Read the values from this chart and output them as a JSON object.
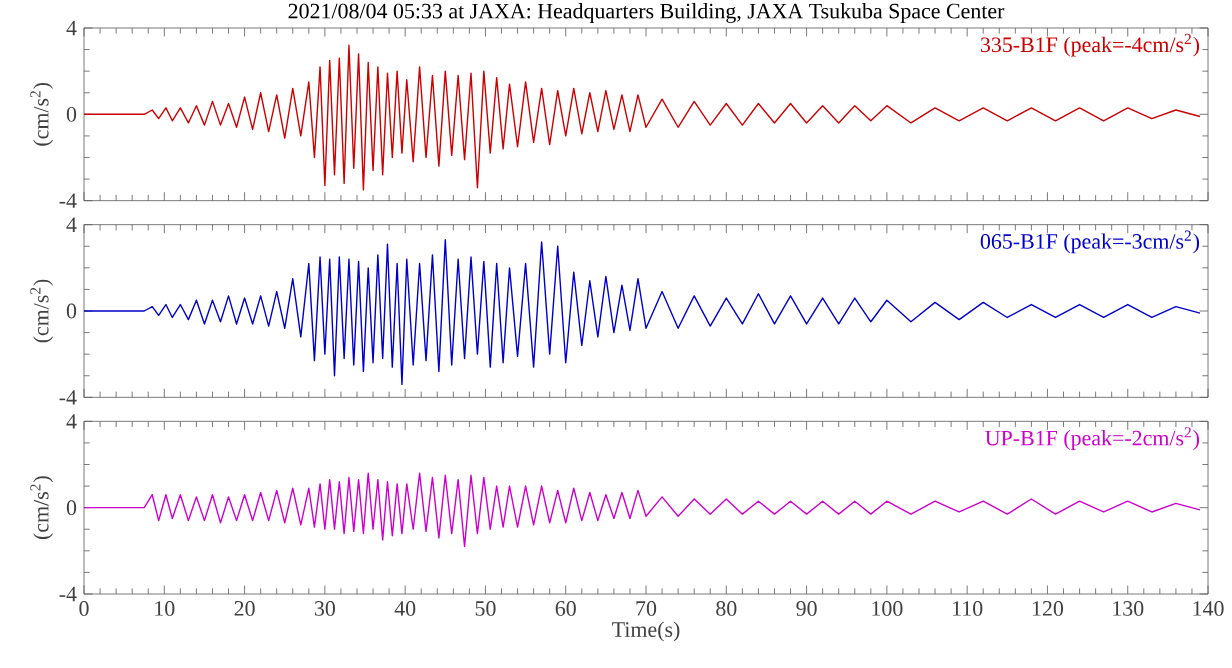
{
  "chart_data": [
    {
      "type": "line",
      "title": "2021/08/04 05:33 at JAXA: Headquarters Building, JAXA Tsukuba Space Center",
      "ylabel": "(cm/s$^{2}$)",
      "annotations": [
        "335-B1F (peak=-4cm/s$^{2}$)"
      ],
      "xlim": [
        0,
        140
      ],
      "xticks": [
        0,
        10,
        20,
        30,
        40,
        50,
        60,
        70,
        80,
        90,
        100,
        110,
        120,
        130,
        140
      ],
      "ylim": [
        -4,
        4
      ],
      "yticks": [
        -4,
        0,
        4
      ],
      "tick_labels": "y",
      "grid": false,
      "marker": "none",
      "line_style": "solid",
      "series": [
        {
          "color": "#cc0000",
          "x": [
            0,
            7.5,
            8.5,
            9.3,
            10.2,
            11,
            12,
            13,
            14,
            15,
            16,
            17,
            18,
            19,
            20,
            21,
            22,
            23,
            24,
            25,
            26,
            27,
            28,
            28.7,
            29.4,
            30,
            30.6,
            31.2,
            31.8,
            32.4,
            33,
            33.6,
            34.2,
            34.8,
            35.4,
            36,
            36.6,
            37.2,
            37.8,
            38.4,
            39,
            39.6,
            40.2,
            41,
            41.8,
            42.6,
            43.4,
            44.2,
            45,
            45.8,
            46.6,
            47.4,
            48.2,
            49,
            49.8,
            50.6,
            51.4,
            52.2,
            53,
            54,
            55,
            56,
            57,
            58,
            59,
            60,
            61,
            62,
            63,
            64,
            65,
            66,
            67,
            68,
            69,
            70,
            72,
            74,
            76,
            78,
            80,
            82,
            84,
            86,
            88,
            90,
            92,
            94,
            96,
            98,
            100,
            103,
            106,
            109,
            112,
            115,
            118,
            121,
            124,
            127,
            130,
            133,
            136,
            139
          ],
          "values": [
            0,
            0,
            0.2,
            -0.2,
            0.3,
            -0.3,
            0.3,
            -0.4,
            0.4,
            -0.5,
            0.6,
            -0.5,
            0.5,
            -0.6,
            0.8,
            -0.7,
            1.0,
            -0.8,
            0.9,
            -1.1,
            1.2,
            -1.0,
            1.5,
            -2.0,
            2.2,
            -3.3,
            2.5,
            -2.8,
            2.6,
            -3.2,
            3.2,
            -2.5,
            2.8,
            -3.5,
            2.4,
            -2.6,
            2.2,
            -2.8,
            1.9,
            -2.0,
            2.0,
            -1.8,
            1.6,
            -2.2,
            2.2,
            -2.0,
            1.8,
            -2.4,
            2.0,
            -1.9,
            1.8,
            -2.1,
            1.9,
            -3.4,
            2.0,
            -1.8,
            1.7,
            -1.6,
            1.4,
            -1.5,
            1.5,
            -1.3,
            1.2,
            -1.4,
            1.1,
            -1.0,
            1.2,
            -0.9,
            1.0,
            -0.8,
            1.1,
            -0.7,
            0.9,
            -0.8,
            0.9,
            -0.6,
            0.7,
            -0.6,
            0.6,
            -0.5,
            0.5,
            -0.5,
            0.5,
            -0.4,
            0.5,
            -0.4,
            0.4,
            -0.4,
            0.4,
            -0.3,
            0.4,
            -0.4,
            0.3,
            -0.3,
            0.3,
            -0.3,
            0.3,
            -0.3,
            0.3,
            -0.3,
            0.3,
            -0.2,
            0.2,
            -0.1
          ]
        }
      ]
    },
    {
      "type": "line",
      "ylabel": "(cm/s$^{2}$)",
      "annotations": [
        "065-B1F (peak=-3cm/s$^{2}$)"
      ],
      "xlim": [
        0,
        140
      ],
      "xticks": [
        0,
        10,
        20,
        30,
        40,
        50,
        60,
        70,
        80,
        90,
        100,
        110,
        120,
        130,
        140
      ],
      "ylim": [
        -4,
        4
      ],
      "yticks": [
        -4,
        0,
        4
      ],
      "tick_labels": "y",
      "grid": false,
      "marker": "none",
      "line_style": "solid",
      "series": [
        {
          "color": "#0000cc",
          "x": [
            0,
            7.5,
            8.5,
            9.3,
            10.2,
            11,
            12,
            13,
            14,
            15,
            16,
            17,
            18,
            19,
            20,
            21,
            22,
            23,
            24,
            25,
            26,
            27,
            28,
            28.7,
            29.4,
            30,
            30.6,
            31.2,
            31.8,
            32.4,
            33,
            33.6,
            34.2,
            34.8,
            35.4,
            36,
            36.6,
            37.2,
            37.8,
            38.4,
            39,
            39.6,
            40.2,
            41,
            41.8,
            42.6,
            43.4,
            44.2,
            45,
            45.8,
            46.6,
            47.4,
            48.2,
            49,
            49.8,
            50.6,
            51.4,
            52.2,
            53,
            54,
            55,
            56,
            57,
            58,
            59,
            60,
            61,
            62,
            63,
            64,
            65,
            66,
            67,
            68,
            69,
            70,
            72,
            74,
            76,
            78,
            80,
            82,
            84,
            86,
            88,
            90,
            92,
            94,
            96,
            98,
            100,
            103,
            106,
            109,
            112,
            115,
            118,
            121,
            124,
            127,
            130,
            133,
            136,
            139
          ],
          "values": [
            0,
            0,
            0.2,
            -0.2,
            0.3,
            -0.3,
            0.3,
            -0.4,
            0.5,
            -0.6,
            0.5,
            -0.5,
            0.7,
            -0.6,
            0.6,
            -0.6,
            0.7,
            -0.7,
            0.9,
            -0.8,
            1.5,
            -1.2,
            2.2,
            -2.3,
            2.5,
            -2.0,
            2.4,
            -3.0,
            2.5,
            -2.2,
            2.4,
            -2.5,
            2.3,
            -2.8,
            2.0,
            -2.4,
            2.6,
            -2.2,
            3.1,
            -2.6,
            2.2,
            -3.4,
            2.4,
            -2.5,
            2.2,
            -2.3,
            2.6,
            -2.8,
            3.3,
            -2.5,
            2.4,
            -2.2,
            2.5,
            -2.0,
            2.3,
            -2.6,
            2.2,
            -2.4,
            2.0,
            -2.1,
            2.2,
            -2.6,
            3.2,
            -2.0,
            3.0,
            -2.4,
            1.8,
            -1.6,
            1.4,
            -1.2,
            1.6,
            -1.0,
            1.2,
            -0.9,
            1.5,
            -0.8,
            0.9,
            -0.8,
            0.7,
            -0.7,
            0.6,
            -0.6,
            0.8,
            -0.6,
            0.7,
            -0.6,
            0.6,
            -0.6,
            0.6,
            -0.5,
            0.5,
            -0.5,
            0.4,
            -0.4,
            0.4,
            -0.3,
            0.3,
            -0.3,
            0.3,
            -0.3,
            0.3,
            -0.3,
            0.2,
            -0.1
          ]
        }
      ]
    },
    {
      "type": "line",
      "ylabel": "(cm/s$^{2}$)",
      "xlabel": "Time(s)",
      "annotations": [
        "UP-B1F (peak=-2cm/s$^{2}$)"
      ],
      "xlim": [
        0,
        140
      ],
      "xticks": [
        0,
        10,
        20,
        30,
        40,
        50,
        60,
        70,
        80,
        90,
        100,
        110,
        120,
        130,
        140
      ],
      "ylim": [
        -4,
        4
      ],
      "yticks": [
        -4,
        0,
        4
      ],
      "grid": false,
      "marker": "none",
      "line_style": "solid",
      "series": [
        {
          "color": "#cc00cc",
          "x": [
            0,
            7.5,
            8.5,
            9.3,
            10.2,
            11,
            12,
            13,
            14,
            15,
            16,
            17,
            18,
            19,
            20,
            21,
            22,
            23,
            24,
            25,
            26,
            27,
            28,
            28.7,
            29.4,
            30,
            30.6,
            31.2,
            31.8,
            32.4,
            33,
            33.6,
            34.2,
            34.8,
            35.4,
            36,
            36.6,
            37.2,
            37.8,
            38.4,
            39,
            39.6,
            40.2,
            41,
            41.8,
            42.6,
            43.4,
            44.2,
            45,
            45.8,
            46.6,
            47.4,
            48.2,
            49,
            49.8,
            50.6,
            51.4,
            52.2,
            53,
            54,
            55,
            56,
            57,
            58,
            59,
            60,
            61,
            62,
            63,
            64,
            65,
            66,
            67,
            68,
            69,
            70,
            72,
            74,
            76,
            78,
            80,
            82,
            84,
            86,
            88,
            90,
            92,
            94,
            96,
            98,
            100,
            103,
            106,
            109,
            112,
            115,
            118,
            121,
            124,
            127,
            130,
            133,
            136,
            139
          ],
          "values": [
            0,
            0,
            0.6,
            -0.6,
            0.6,
            -0.5,
            0.6,
            -0.6,
            0.5,
            -0.6,
            0.6,
            -0.7,
            0.5,
            -0.6,
            0.6,
            -0.6,
            0.7,
            -0.6,
            0.8,
            -0.7,
            0.9,
            -0.8,
            0.9,
            -0.9,
            1.1,
            -1.0,
            1.3,
            -1.0,
            1.2,
            -1.2,
            1.4,
            -1.1,
            1.3,
            -1.2,
            1.6,
            -1.0,
            1.3,
            -1.5,
            1.2,
            -1.3,
            1.1,
            -1.2,
            1.1,
            -1.0,
            1.6,
            -1.1,
            1.4,
            -1.4,
            1.5,
            -1.2,
            1.3,
            -1.8,
            1.5,
            -1.2,
            1.4,
            -1.0,
            1.0,
            -0.9,
            1.0,
            -0.9,
            1.0,
            -0.8,
            1.0,
            -0.7,
            0.8,
            -0.7,
            0.9,
            -0.6,
            0.7,
            -0.6,
            0.6,
            -0.5,
            0.7,
            -0.5,
            0.8,
            -0.4,
            0.5,
            -0.4,
            0.4,
            -0.3,
            0.4,
            -0.3,
            0.3,
            -0.3,
            0.3,
            -0.3,
            0.3,
            -0.3,
            0.3,
            -0.3,
            0.3,
            -0.3,
            0.3,
            -0.2,
            0.3,
            -0.3,
            0.4,
            -0.3,
            0.3,
            -0.2,
            0.3,
            -0.2,
            0.2,
            -0.1
          ]
        }
      ]
    }
  ]
}
